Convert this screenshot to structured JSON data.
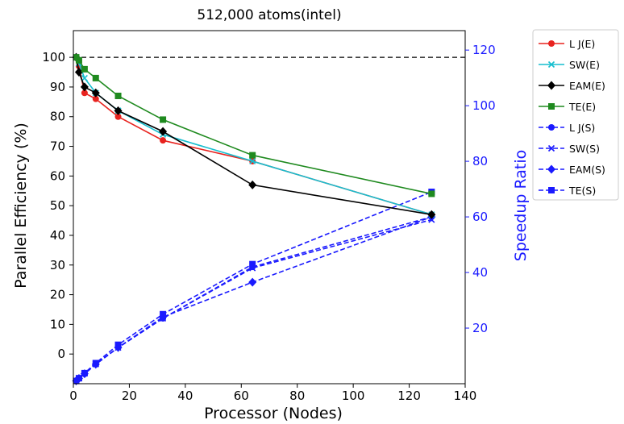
{
  "chart_data": {
    "type": "line",
    "title": "512,000 atoms(intel)",
    "xlabel": "Processor (Nodes)",
    "ylabel_left": "Parallel Efficiency (%)",
    "ylabel_right": "Speedup Ratio",
    "xlim": [
      0,
      140
    ],
    "ylim_left": [
      -10,
      109
    ],
    "ylim_right": [
      0,
      127
    ],
    "x_ticks": [
      0,
      20,
      40,
      60,
      80,
      100,
      120,
      140
    ],
    "y_left_ticks": [
      0,
      10,
      20,
      30,
      40,
      50,
      60,
      70,
      80,
      90,
      100
    ],
    "y_right_ticks": [
      20,
      40,
      60,
      80,
      100,
      120
    ],
    "reference_line": {
      "axis": "left",
      "y": 100,
      "style": "dashed",
      "color": "#000000"
    },
    "grid": false,
    "legend_position": "outside-right",
    "right_axis_color": "#1a1aff",
    "series": [
      {
        "name": "L J(E)",
        "axis": "left",
        "color": "#e8231f",
        "linestyle": "solid",
        "marker": "circle",
        "x": [
          1,
          2,
          4,
          8,
          16,
          32,
          64,
          128
        ],
        "values": [
          100,
          97,
          88,
          86,
          80,
          72,
          65,
          47
        ]
      },
      {
        "name": "SW(E)",
        "axis": "left",
        "color": "#17becf",
        "linestyle": "solid",
        "marker": "x",
        "x": [
          1,
          2,
          4,
          8,
          16,
          32,
          64,
          128
        ],
        "values": [
          100,
          98,
          93,
          88,
          82,
          74,
          65,
          47
        ]
      },
      {
        "name": "EAM(E)",
        "axis": "left",
        "color": "#000000",
        "linestyle": "solid",
        "marker": "diamond",
        "x": [
          1,
          2,
          4,
          8,
          16,
          32,
          64,
          128
        ],
        "values": [
          100,
          95,
          90,
          88,
          82,
          75,
          57,
          47
        ]
      },
      {
        "name": "TE(E)",
        "axis": "left",
        "color": "#1f8a1f",
        "linestyle": "solid",
        "marker": "square",
        "x": [
          1,
          2,
          4,
          8,
          16,
          32,
          64,
          128
        ],
        "values": [
          100,
          99,
          96,
          93,
          87,
          79,
          67,
          54
        ]
      },
      {
        "name": "L J(S)",
        "axis": "right",
        "color": "#1a1aff",
        "linestyle": "dashed",
        "marker": "circle",
        "x": [
          1,
          2,
          4,
          8,
          16,
          32,
          64,
          128
        ],
        "values": [
          1,
          1.94,
          3.5,
          7,
          13,
          23.5,
          42,
          60
        ]
      },
      {
        "name": "SW(S)",
        "axis": "right",
        "color": "#1a1aff",
        "linestyle": "dashed",
        "marker": "x",
        "x": [
          1,
          2,
          4,
          8,
          16,
          32,
          64,
          128
        ],
        "values": [
          1,
          1.96,
          3.7,
          7,
          13,
          23.5,
          41.6,
          59
        ]
      },
      {
        "name": "EAM(S)",
        "axis": "right",
        "color": "#1a1aff",
        "linestyle": "dashed",
        "marker": "diamond",
        "x": [
          1,
          2,
          4,
          8,
          16,
          32,
          64,
          128
        ],
        "values": [
          1,
          1.9,
          3.6,
          7,
          13,
          24,
          36.5,
          60
        ]
      },
      {
        "name": "TE(S)",
        "axis": "right",
        "color": "#1a1aff",
        "linestyle": "dashed",
        "marker": "square",
        "x": [
          1,
          2,
          4,
          8,
          16,
          32,
          64,
          128
        ],
        "values": [
          1,
          1.98,
          3.8,
          7.4,
          14,
          25,
          43,
          69
        ]
      }
    ]
  }
}
